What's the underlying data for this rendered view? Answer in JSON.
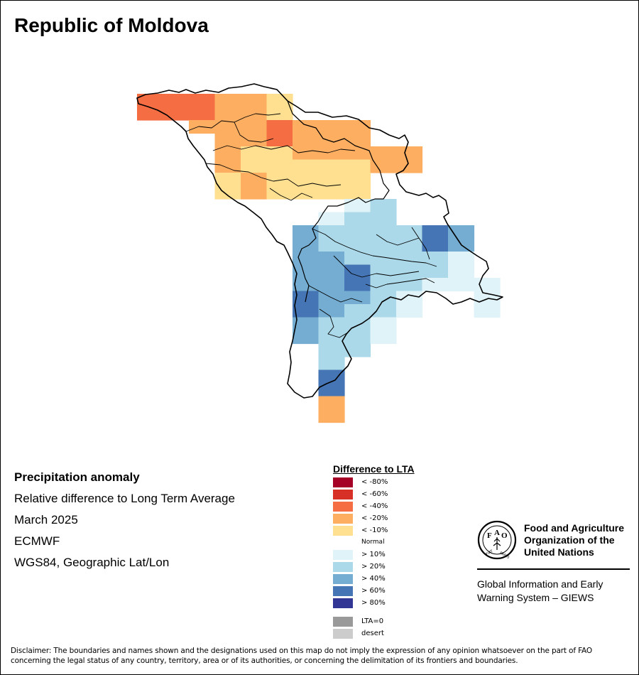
{
  "title": "Republic of Moldova",
  "info": {
    "line1": "Precipitation anomaly",
    "line2": "Relative difference to Long Term Average",
    "line3": "March 2025",
    "line4": "ECMWF",
    "line5": "WGS84, Geographic Lat/Lon"
  },
  "legend": {
    "title": "Difference to LTA",
    "items": [
      {
        "label": "< -80%",
        "color": "#a50026"
      },
      {
        "label": "< -60%",
        "color": "#d73027"
      },
      {
        "label": "< -40%",
        "color": "#f46d43"
      },
      {
        "label": "< -20%",
        "color": "#fdae61"
      },
      {
        "label": "< -10%",
        "color": "#fee090"
      },
      {
        "label": "Normal",
        "color": "#ffffff"
      },
      {
        "label": "> 10%",
        "color": "#e0f3f8"
      },
      {
        "label": "> 20%",
        "color": "#abd9e9"
      },
      {
        "label": "> 40%",
        "color": "#74add1"
      },
      {
        "label": "> 60%",
        "color": "#4575b4"
      },
      {
        "label": "> 80%",
        "color": "#313695"
      },
      {
        "label": "LTA=0",
        "color": "#999999"
      },
      {
        "label": "desert",
        "color": "#cccccc"
      }
    ]
  },
  "logo": {
    "icon": "fao-logo-icon",
    "org_line1": "Food and Agriculture",
    "org_line2": "Organization of the",
    "org_line3": "United Nations",
    "system_line1": "Global Information and Early",
    "system_line2": "Warning System – GIEWS"
  },
  "disclaimer": "Disclaimer: The boundaries and names shown and the designations used on this map do not imply the expression of any opinion whatsoever on the part of FAO concerning the legal status of any country, territory, area or of its authorities, or concerning the delimitation of its frontiers and boundaries.",
  "map": {
    "grid_cells": [
      {
        "row": 0,
        "col": 0,
        "cls": "< -40%"
      },
      {
        "row": 0,
        "col": 1,
        "cls": "< -40%"
      },
      {
        "row": 0,
        "col": 2,
        "cls": "< -40%"
      },
      {
        "row": 0,
        "col": 3,
        "cls": "< -20%"
      },
      {
        "row": 0,
        "col": 4,
        "cls": "< -20%"
      },
      {
        "row": 0,
        "col": 5,
        "cls": "< -10%"
      },
      {
        "row": 1,
        "col": 0,
        "cls": "< -40%"
      },
      {
        "row": 1,
        "col": 1,
        "cls": "< -40%"
      },
      {
        "row": 1,
        "col": 2,
        "cls": "< -40%"
      },
      {
        "row": 1,
        "col": 3,
        "cls": "< -20%"
      },
      {
        "row": 1,
        "col": 4,
        "cls": "< -20%"
      },
      {
        "row": 1,
        "col": 5,
        "cls": "< -10%"
      },
      {
        "row": 2,
        "col": 2,
        "cls": "< -20%"
      },
      {
        "row": 2,
        "col": 3,
        "cls": "< -20%"
      },
      {
        "row": 2,
        "col": 4,
        "cls": "< -20%"
      },
      {
        "row": 2,
        "col": 5,
        "cls": "< -40%"
      },
      {
        "row": 2,
        "col": 6,
        "cls": "< -20%"
      },
      {
        "row": 2,
        "col": 7,
        "cls": "< -20%"
      },
      {
        "row": 2,
        "col": 8,
        "cls": "< -20%"
      },
      {
        "row": 3,
        "col": 3,
        "cls": "< -20%"
      },
      {
        "row": 3,
        "col": 4,
        "cls": "< -20%"
      },
      {
        "row": 3,
        "col": 5,
        "cls": "< -40%"
      },
      {
        "row": 3,
        "col": 6,
        "cls": "< -20%"
      },
      {
        "row": 3,
        "col": 7,
        "cls": "< -20%"
      },
      {
        "row": 3,
        "col": 8,
        "cls": "< -20%"
      },
      {
        "row": 4,
        "col": 3,
        "cls": "< -20%"
      },
      {
        "row": 4,
        "col": 4,
        "cls": "< -10%"
      },
      {
        "row": 4,
        "col": 5,
        "cls": "< -10%"
      },
      {
        "row": 4,
        "col": 6,
        "cls": "< -20%"
      },
      {
        "row": 4,
        "col": 7,
        "cls": "< -20%"
      },
      {
        "row": 4,
        "col": 8,
        "cls": "< -20%"
      },
      {
        "row": 4,
        "col": 9,
        "cls": "< -20%"
      },
      {
        "row": 4,
        "col": 10,
        "cls": "< -20%"
      },
      {
        "row": 5,
        "col": 3,
        "cls": "< -20%"
      },
      {
        "row": 5,
        "col": 4,
        "cls": "< -10%"
      },
      {
        "row": 5,
        "col": 5,
        "cls": "< -10%"
      },
      {
        "row": 5,
        "col": 6,
        "cls": "< -10%"
      },
      {
        "row": 5,
        "col": 7,
        "cls": "< -10%"
      },
      {
        "row": 5,
        "col": 8,
        "cls": "< -10%"
      },
      {
        "row": 5,
        "col": 9,
        "cls": "< -20%"
      },
      {
        "row": 5,
        "col": 10,
        "cls": "< -20%"
      },
      {
        "row": 6,
        "col": 3,
        "cls": "< -10%"
      },
      {
        "row": 6,
        "col": 4,
        "cls": "< -20%"
      },
      {
        "row": 6,
        "col": 5,
        "cls": "< -10%"
      },
      {
        "row": 6,
        "col": 6,
        "cls": "< -10%"
      },
      {
        "row": 6,
        "col": 7,
        "cls": "< -10%"
      },
      {
        "row": 6,
        "col": 8,
        "cls": "< -10%"
      },
      {
        "row": 7,
        "col": 3,
        "cls": "< -10%"
      },
      {
        "row": 7,
        "col": 4,
        "cls": "< -20%"
      },
      {
        "row": 7,
        "col": 5,
        "cls": "< -10%"
      },
      {
        "row": 7,
        "col": 6,
        "cls": "< -10%"
      },
      {
        "row": 7,
        "col": 7,
        "cls": "< -10%"
      },
      {
        "row": 7,
        "col": 8,
        "cls": "< -10%"
      },
      {
        "row": 8,
        "col": 8,
        "cls": "> 10%"
      },
      {
        "row": 8,
        "col": 9,
        "cls": "> 20%"
      },
      {
        "row": 9,
        "col": 7,
        "cls": "> 10%"
      },
      {
        "row": 9,
        "col": 8,
        "cls": "> 20%"
      },
      {
        "row": 9,
        "col": 9,
        "cls": "> 20%"
      },
      {
        "row": 10,
        "col": 6,
        "cls": "> 40%"
      },
      {
        "row": 10,
        "col": 7,
        "cls": "> 20%"
      },
      {
        "row": 10,
        "col": 8,
        "cls": "> 20%"
      },
      {
        "row": 10,
        "col": 9,
        "cls": "> 20%"
      },
      {
        "row": 10,
        "col": 10,
        "cls": "> 20%"
      },
      {
        "row": 10,
        "col": 11,
        "cls": "> 60%"
      },
      {
        "row": 10,
        "col": 12,
        "cls": "> 40%"
      },
      {
        "row": 11,
        "col": 6,
        "cls": "> 40%"
      },
      {
        "row": 11,
        "col": 7,
        "cls": "> 20%"
      },
      {
        "row": 11,
        "col": 8,
        "cls": "> 20%"
      },
      {
        "row": 11,
        "col": 9,
        "cls": "> 20%"
      },
      {
        "row": 11,
        "col": 10,
        "cls": "> 20%"
      },
      {
        "row": 11,
        "col": 11,
        "cls": "> 60%"
      },
      {
        "row": 11,
        "col": 12,
        "cls": "> 40%"
      },
      {
        "row": 12,
        "col": 6,
        "cls": "> 40%"
      },
      {
        "row": 12,
        "col": 7,
        "cls": "> 40%"
      },
      {
        "row": 12,
        "col": 8,
        "cls": "> 20%"
      },
      {
        "row": 12,
        "col": 9,
        "cls": "> 20%"
      },
      {
        "row": 12,
        "col": 10,
        "cls": "> 20%"
      },
      {
        "row": 12,
        "col": 11,
        "cls": "> 20%"
      },
      {
        "row": 12,
        "col": 12,
        "cls": "> 10%"
      },
      {
        "row": 13,
        "col": 6,
        "cls": "> 40%"
      },
      {
        "row": 13,
        "col": 7,
        "cls": "> 40%"
      },
      {
        "row": 13,
        "col": 8,
        "cls": "> 60%"
      },
      {
        "row": 13,
        "col": 9,
        "cls": "> 20%"
      },
      {
        "row": 13,
        "col": 10,
        "cls": "> 20%"
      },
      {
        "row": 13,
        "col": 11,
        "cls": "> 20%"
      },
      {
        "row": 13,
        "col": 12,
        "cls": "> 10%"
      },
      {
        "row": 14,
        "col": 6,
        "cls": "> 40%"
      },
      {
        "row": 14,
        "col": 7,
        "cls": "> 40%"
      },
      {
        "row": 14,
        "col": 8,
        "cls": "> 60%"
      },
      {
        "row": 14,
        "col": 9,
        "cls": "> 20%"
      },
      {
        "row": 14,
        "col": 10,
        "cls": "> 20%"
      },
      {
        "row": 14,
        "col": 11,
        "cls": "> 10%"
      },
      {
        "row": 14,
        "col": 12,
        "cls": "> 10%"
      },
      {
        "row": 14,
        "col": 13,
        "cls": "> 10%"
      },
      {
        "row": 15,
        "col": 6,
        "cls": "> 60%"
      },
      {
        "row": 15,
        "col": 7,
        "cls": "> 40%"
      },
      {
        "row": 15,
        "col": 8,
        "cls": "> 40%"
      },
      {
        "row": 15,
        "col": 9,
        "cls": "> 20%"
      },
      {
        "row": 15,
        "col": 10,
        "cls": "> 10%"
      },
      {
        "row": 15,
        "col": 13,
        "cls": "> 10%"
      },
      {
        "row": 16,
        "col": 6,
        "cls": "> 60%"
      },
      {
        "row": 16,
        "col": 7,
        "cls": "> 40%"
      },
      {
        "row": 16,
        "col": 8,
        "cls": "> 20%"
      },
      {
        "row": 16,
        "col": 9,
        "cls": "> 20%"
      },
      {
        "row": 16,
        "col": 10,
        "cls": "> 10%"
      },
      {
        "row": 16,
        "col": 13,
        "cls": "> 10%"
      },
      {
        "row": 17,
        "col": 6,
        "cls": "> 40%"
      },
      {
        "row": 17,
        "col": 7,
        "cls": "> 20%"
      },
      {
        "row": 17,
        "col": 8,
        "cls": "> 20%"
      },
      {
        "row": 17,
        "col": 9,
        "cls": "> 10%"
      },
      {
        "row": 18,
        "col": 6,
        "cls": "> 40%"
      },
      {
        "row": 18,
        "col": 7,
        "cls": "> 20%"
      },
      {
        "row": 18,
        "col": 8,
        "cls": "> 20%"
      },
      {
        "row": 18,
        "col": 9,
        "cls": "> 10%"
      },
      {
        "row": 19,
        "col": 7,
        "cls": "> 20%"
      },
      {
        "row": 19,
        "col": 8,
        "cls": "> 20%"
      },
      {
        "row": 20,
        "col": 7,
        "cls": "> 20%"
      },
      {
        "row": 21,
        "col": 7,
        "cls": "> 60%"
      },
      {
        "row": 22,
        "col": 7,
        "cls": "> 60%"
      },
      {
        "row": 23,
        "col": 7,
        "cls": "< -20%"
      },
      {
        "row": 24,
        "col": 7,
        "cls": "< -20%"
      }
    ]
  }
}
